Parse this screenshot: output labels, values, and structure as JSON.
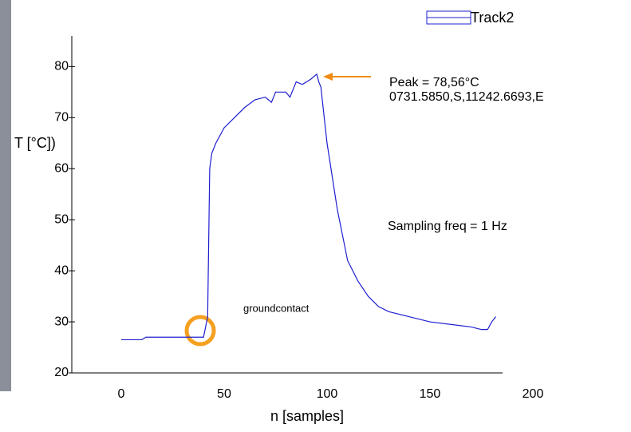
{
  "chart_data": {
    "type": "line",
    "y_label": "T [°C])",
    "x_label": "n [samples]",
    "annotations": [
      "Peak = 78,56°C",
      "0731.5850,S,11242.6693,E",
      "Sampling freq = 1 Hz",
      "groundcontact"
    ],
    "x": [
      0,
      10,
      12,
      20,
      30,
      40,
      42,
      43,
      44,
      46,
      50,
      55,
      60,
      65,
      70,
      73,
      75,
      80,
      82,
      85,
      88,
      92,
      95,
      96,
      97,
      100,
      105,
      110,
      115,
      120,
      125,
      130,
      140,
      150,
      160,
      170,
      175,
      178,
      180,
      182
    ],
    "series": [
      {
        "name": "Track2",
        "color": "#1f1fd0",
        "values": [
          26.5,
          26.5,
          27,
          27,
          27,
          27,
          31,
          60,
          63,
          65,
          68,
          70,
          72,
          73.5,
          74,
          73,
          75,
          75,
          74,
          77,
          76.5,
          77.5,
          78.5,
          77,
          76,
          65,
          52,
          42,
          38,
          35,
          33,
          32,
          31,
          30,
          29.5,
          29,
          28.5,
          28.5,
          30,
          31
        ]
      }
    ],
    "xlim": [
      -24,
      200
    ],
    "xticks": [
      0,
      50,
      100,
      150,
      200
    ],
    "ylim": [
      20,
      86
    ],
    "yticks": [
      20,
      30,
      40,
      50,
      60,
      70,
      80
    ]
  }
}
